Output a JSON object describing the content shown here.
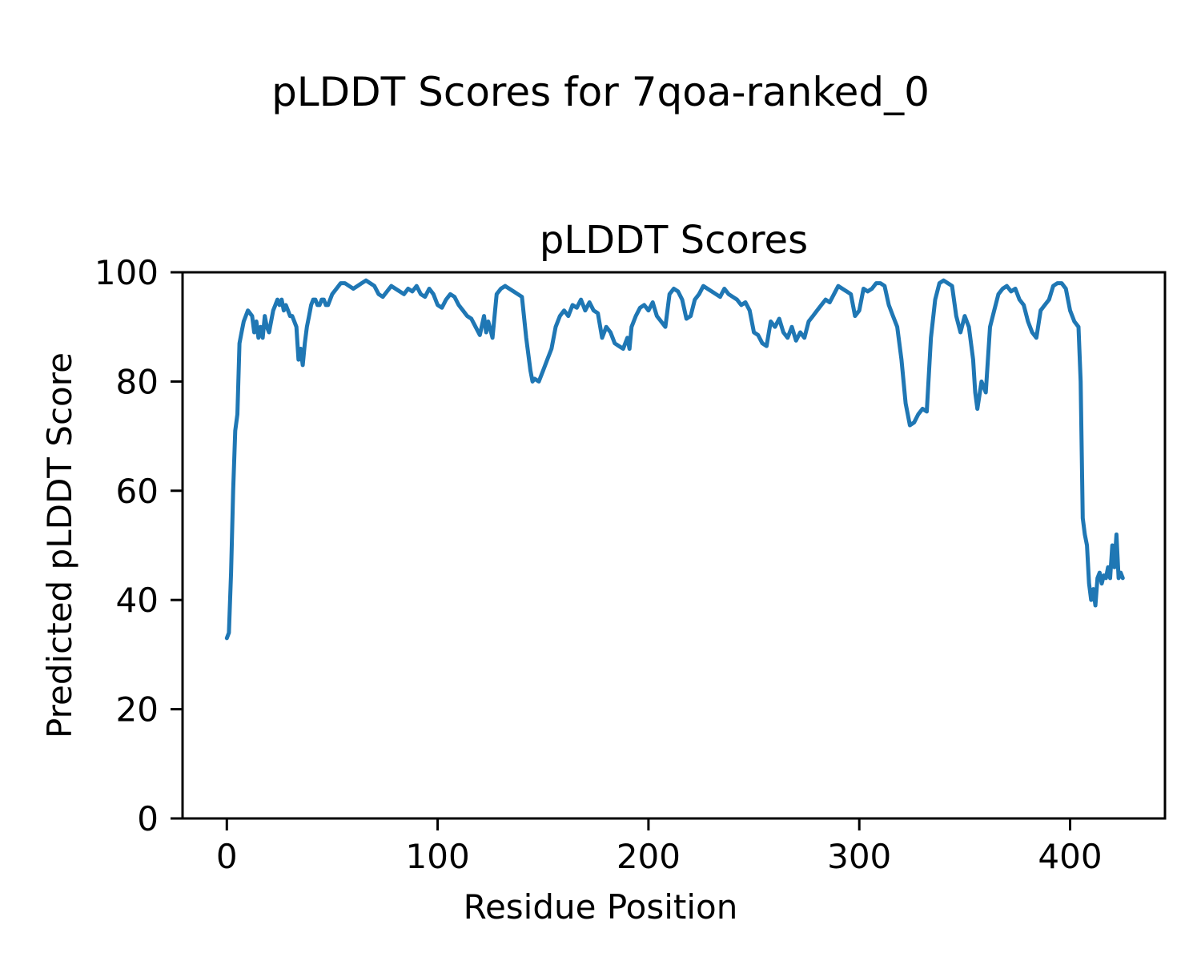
{
  "figure": {
    "suptitle": "pLDDT Scores for 7qoa-ranked_0"
  },
  "chart_data": {
    "type": "line",
    "title": "pLDDT Scores",
    "xlabel": "Residue Position",
    "ylabel": "Predicted pLDDT Score",
    "xlim": [
      -21,
      445
    ],
    "ylim": [
      0,
      100
    ],
    "xticks": [
      0,
      100,
      200,
      300,
      400
    ],
    "yticks": [
      0,
      20,
      40,
      60,
      80,
      100
    ],
    "grid": false,
    "legend": "none",
    "line_color": "#1f77b4",
    "line_width": 5,
    "series": [
      {
        "name": "pLDDT",
        "points": [
          [
            0,
            33
          ],
          [
            1,
            34
          ],
          [
            2,
            45
          ],
          [
            3,
            60
          ],
          [
            4,
            71
          ],
          [
            5,
            74
          ],
          [
            6,
            87
          ],
          [
            7,
            89
          ],
          [
            8,
            91
          ],
          [
            10,
            93
          ],
          [
            12,
            92
          ],
          [
            13,
            89
          ],
          [
            14,
            91
          ],
          [
            15,
            88
          ],
          [
            16,
            90
          ],
          [
            17,
            88
          ],
          [
            18,
            92
          ],
          [
            19,
            90
          ],
          [
            20,
            89
          ],
          [
            21,
            91
          ],
          [
            22,
            93
          ],
          [
            23,
            94
          ],
          [
            24,
            95
          ],
          [
            25,
            94
          ],
          [
            26,
            95
          ],
          [
            27,
            93
          ],
          [
            28,
            94
          ],
          [
            29,
            93
          ],
          [
            30,
            92
          ],
          [
            31,
            92
          ],
          [
            32,
            91
          ],
          [
            33,
            90
          ],
          [
            34,
            84
          ],
          [
            35,
            86
          ],
          [
            36,
            83
          ],
          [
            37,
            87
          ],
          [
            38,
            90
          ],
          [
            39,
            92
          ],
          [
            40,
            94
          ],
          [
            41,
            95
          ],
          [
            42,
            95
          ],
          [
            43,
            94
          ],
          [
            44,
            94
          ],
          [
            45,
            95
          ],
          [
            46,
            95
          ],
          [
            47,
            94
          ],
          [
            48,
            94
          ],
          [
            49,
            95
          ],
          [
            50,
            96
          ],
          [
            52,
            97
          ],
          [
            54,
            98
          ],
          [
            56,
            98
          ],
          [
            58,
            97.5
          ],
          [
            60,
            97
          ],
          [
            62,
            97.5
          ],
          [
            64,
            98
          ],
          [
            66,
            98.5
          ],
          [
            68,
            98
          ],
          [
            70,
            97.5
          ],
          [
            72,
            96
          ],
          [
            74,
            95.5
          ],
          [
            76,
            96.5
          ],
          [
            78,
            97.5
          ],
          [
            80,
            97
          ],
          [
            82,
            96.5
          ],
          [
            84,
            96
          ],
          [
            86,
            97
          ],
          [
            88,
            96.5
          ],
          [
            90,
            97.5
          ],
          [
            92,
            96
          ],
          [
            94,
            95.5
          ],
          [
            96,
            97
          ],
          [
            98,
            96
          ],
          [
            100,
            94
          ],
          [
            102,
            93.5
          ],
          [
            104,
            95
          ],
          [
            106,
            96
          ],
          [
            108,
            95.5
          ],
          [
            110,
            94
          ],
          [
            112,
            93
          ],
          [
            114,
            92
          ],
          [
            116,
            91.5
          ],
          [
            118,
            90
          ],
          [
            120,
            88.5
          ],
          [
            122,
            92
          ],
          [
            123,
            89
          ],
          [
            124,
            91
          ],
          [
            126,
            88
          ],
          [
            128,
            96
          ],
          [
            130,
            97
          ],
          [
            132,
            97.5
          ],
          [
            134,
            97
          ],
          [
            136,
            96.5
          ],
          [
            138,
            96
          ],
          [
            140,
            95.5
          ],
          [
            142,
            88
          ],
          [
            144,
            82
          ],
          [
            145,
            80
          ],
          [
            146,
            80.5
          ],
          [
            148,
            80
          ],
          [
            150,
            82
          ],
          [
            152,
            84
          ],
          [
            154,
            86
          ],
          [
            156,
            90
          ],
          [
            158,
            92
          ],
          [
            160,
            93
          ],
          [
            162,
            92
          ],
          [
            164,
            94
          ],
          [
            166,
            93.5
          ],
          [
            168,
            95
          ],
          [
            170,
            93
          ],
          [
            172,
            94.5
          ],
          [
            174,
            93
          ],
          [
            176,
            92.5
          ],
          [
            178,
            88
          ],
          [
            180,
            90
          ],
          [
            182,
            89
          ],
          [
            184,
            87
          ],
          [
            186,
            86.5
          ],
          [
            188,
            86
          ],
          [
            190,
            88
          ],
          [
            191,
            86
          ],
          [
            192,
            90
          ],
          [
            194,
            92
          ],
          [
            196,
            93.5
          ],
          [
            198,
            94
          ],
          [
            200,
            93
          ],
          [
            202,
            94.5
          ],
          [
            204,
            92
          ],
          [
            206,
            91
          ],
          [
            208,
            90
          ],
          [
            210,
            96
          ],
          [
            212,
            97
          ],
          [
            214,
            96.5
          ],
          [
            216,
            95
          ],
          [
            218,
            91.5
          ],
          [
            220,
            92
          ],
          [
            222,
            95
          ],
          [
            224,
            96
          ],
          [
            226,
            97.5
          ],
          [
            228,
            97
          ],
          [
            230,
            96.5
          ],
          [
            232,
            96
          ],
          [
            234,
            95.5
          ],
          [
            236,
            97
          ],
          [
            238,
            96
          ],
          [
            240,
            95.5
          ],
          [
            242,
            95
          ],
          [
            244,
            94
          ],
          [
            246,
            94.5
          ],
          [
            248,
            93
          ],
          [
            250,
            89
          ],
          [
            252,
            88.5
          ],
          [
            254,
            87
          ],
          [
            256,
            86.5
          ],
          [
            258,
            91
          ],
          [
            260,
            90
          ],
          [
            262,
            91.5
          ],
          [
            264,
            89
          ],
          [
            266,
            88
          ],
          [
            268,
            90
          ],
          [
            270,
            87.5
          ],
          [
            272,
            89
          ],
          [
            274,
            88
          ],
          [
            276,
            91
          ],
          [
            278,
            92
          ],
          [
            280,
            93
          ],
          [
            282,
            94
          ],
          [
            284,
            95
          ],
          [
            286,
            94.5
          ],
          [
            288,
            96
          ],
          [
            290,
            97.5
          ],
          [
            292,
            97
          ],
          [
            294,
            96.5
          ],
          [
            296,
            96
          ],
          [
            298,
            92
          ],
          [
            300,
            93
          ],
          [
            302,
            97
          ],
          [
            304,
            96.5
          ],
          [
            306,
            97
          ],
          [
            308,
            98
          ],
          [
            310,
            98
          ],
          [
            312,
            97.5
          ],
          [
            314,
            94
          ],
          [
            316,
            92
          ],
          [
            318,
            90
          ],
          [
            320,
            84
          ],
          [
            322,
            76
          ],
          [
            324,
            72
          ],
          [
            326,
            72.5
          ],
          [
            328,
            74
          ],
          [
            330,
            75
          ],
          [
            332,
            74.5
          ],
          [
            334,
            88
          ],
          [
            336,
            95
          ],
          [
            338,
            98
          ],
          [
            340,
            98.5
          ],
          [
            342,
            98
          ],
          [
            344,
            97.5
          ],
          [
            346,
            92
          ],
          [
            348,
            89
          ],
          [
            350,
            92
          ],
          [
            352,
            90
          ],
          [
            354,
            84
          ],
          [
            355,
            78
          ],
          [
            356,
            75
          ],
          [
            358,
            80
          ],
          [
            360,
            78
          ],
          [
            362,
            90
          ],
          [
            364,
            93
          ],
          [
            366,
            96
          ],
          [
            368,
            97
          ],
          [
            370,
            97.5
          ],
          [
            372,
            96.5
          ],
          [
            374,
            97
          ],
          [
            376,
            95
          ],
          [
            378,
            94
          ],
          [
            380,
            91
          ],
          [
            382,
            89
          ],
          [
            384,
            88
          ],
          [
            386,
            93
          ],
          [
            388,
            94
          ],
          [
            390,
            95
          ],
          [
            392,
            97.5
          ],
          [
            394,
            98
          ],
          [
            396,
            98
          ],
          [
            398,
            97
          ],
          [
            400,
            93
          ],
          [
            402,
            91
          ],
          [
            404,
            90
          ],
          [
            405,
            80
          ],
          [
            406,
            55
          ],
          [
            407,
            52
          ],
          [
            408,
            50
          ],
          [
            409,
            43
          ],
          [
            410,
            40
          ],
          [
            411,
            42
          ],
          [
            412,
            39
          ],
          [
            413,
            44
          ],
          [
            414,
            45
          ],
          [
            415,
            43
          ],
          [
            416,
            44.5
          ],
          [
            417,
            44
          ],
          [
            418,
            46
          ],
          [
            419,
            44
          ],
          [
            420,
            50
          ],
          [
            421,
            46
          ],
          [
            422,
            52
          ],
          [
            423,
            44
          ],
          [
            424,
            45
          ],
          [
            425,
            44
          ]
        ]
      }
    ]
  }
}
